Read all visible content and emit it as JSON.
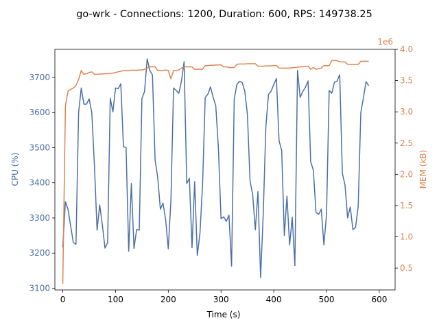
{
  "chart_data": {
    "type": "line",
    "title": "go-wrk - Connections: 1200, Duration: 600, RPS: 149738.25",
    "xlabel": "Time (s)",
    "ylabel_left": "CPU (%)",
    "ylabel_right": "MEM (kB)",
    "right_offset_label": "1e6",
    "xlim": [
      -15,
      630
    ],
    "ylim_left": [
      3095,
      3780
    ],
    "ylim_right": [
      0.15,
      4.0
    ],
    "x_ticks": [
      0,
      100,
      200,
      300,
      400,
      500,
      600
    ],
    "x_tick_labels": [
      "0",
      "100",
      "200",
      "300",
      "400",
      "500",
      "600"
    ],
    "y_left_ticks": [
      3100,
      3200,
      3300,
      3400,
      3500,
      3600,
      3700
    ],
    "y_left_tick_labels": [
      "3100",
      "3200",
      "3300",
      "3400",
      "3500",
      "3600",
      "3700"
    ],
    "y_right_ticks": [
      0.5,
      1.0,
      1.5,
      2.0,
      2.5,
      3.0,
      3.5,
      4.0
    ],
    "y_right_tick_labels": [
      "0.5",
      "1.0",
      "1.5",
      "2.0",
      "2.5",
      "3.0",
      "3.5",
      "4.0"
    ],
    "grid": false,
    "colors": {
      "cpu": "#4c6fa8",
      "mem": "#dd8452",
      "axis": "#000000"
    },
    "series": [
      {
        "key": "cpu",
        "axis": "left",
        "points": [
          [
            0,
            3216
          ],
          [
            5,
            3346
          ],
          [
            10,
            3324
          ],
          [
            15,
            3276
          ],
          [
            20,
            3230
          ],
          [
            25,
            3225
          ],
          [
            30,
            3600
          ],
          [
            35,
            3670
          ],
          [
            40,
            3624
          ],
          [
            45,
            3624
          ],
          [
            50,
            3639
          ],
          [
            55,
            3600
          ],
          [
            60,
            3450
          ],
          [
            65,
            3265
          ],
          [
            70,
            3337
          ],
          [
            75,
            3280
          ],
          [
            80,
            3214
          ],
          [
            85,
            3230
          ],
          [
            90,
            3641
          ],
          [
            95,
            3602
          ],
          [
            100,
            3670
          ],
          [
            105,
            3668
          ],
          [
            110,
            3682
          ],
          [
            115,
            3503
          ],
          [
            120,
            3500
          ],
          [
            125,
            3205
          ],
          [
            130,
            3398
          ],
          [
            135,
            3213
          ],
          [
            140,
            3267
          ],
          [
            145,
            3265
          ],
          [
            150,
            3640
          ],
          [
            155,
            3660
          ],
          [
            160,
            3753
          ],
          [
            165,
            3720
          ],
          [
            170,
            3707
          ],
          [
            175,
            3465
          ],
          [
            180,
            3415
          ],
          [
            185,
            3325
          ],
          [
            190,
            3342
          ],
          [
            195,
            3295
          ],
          [
            200,
            3212
          ],
          [
            205,
            3350
          ],
          [
            210,
            3670
          ],
          [
            215,
            3663
          ],
          [
            220,
            3655
          ],
          [
            225,
            3690
          ],
          [
            230,
            3745
          ],
          [
            235,
            3398
          ],
          [
            240,
            3413
          ],
          [
            245,
            3215
          ],
          [
            250,
            3403
          ],
          [
            255,
            3193
          ],
          [
            260,
            3255
          ],
          [
            265,
            3395
          ],
          [
            270,
            3643
          ],
          [
            275,
            3652
          ],
          [
            280,
            3673
          ],
          [
            285,
            3644
          ],
          [
            290,
            3620
          ],
          [
            295,
            3500
          ],
          [
            300,
            3298
          ],
          [
            305,
            3303
          ],
          [
            310,
            3290
          ],
          [
            315,
            3308
          ],
          [
            320,
            3163
          ],
          [
            325,
            3638
          ],
          [
            330,
            3680
          ],
          [
            335,
            3689
          ],
          [
            340,
            3686
          ],
          [
            345,
            3661
          ],
          [
            350,
            3595
          ],
          [
            355,
            3405
          ],
          [
            360,
            3367
          ],
          [
            365,
            3266
          ],
          [
            370,
            3375
          ],
          [
            375,
            3130
          ],
          [
            380,
            3310
          ],
          [
            385,
            3560
          ],
          [
            390,
            3652
          ],
          [
            395,
            3661
          ],
          [
            400,
            3680
          ],
          [
            405,
            3697
          ],
          [
            410,
            3520
          ],
          [
            415,
            3492
          ],
          [
            420,
            3250
          ],
          [
            425,
            3362
          ],
          [
            430,
            3223
          ],
          [
            435,
            3302
          ],
          [
            440,
            3164
          ],
          [
            445,
            3720
          ],
          [
            450,
            3643
          ],
          [
            455,
            3660
          ],
          [
            460,
            3672
          ],
          [
            465,
            3690
          ],
          [
            470,
            3460
          ],
          [
            475,
            3436
          ],
          [
            480,
            3316
          ],
          [
            485,
            3310
          ],
          [
            490,
            3325
          ],
          [
            495,
            3223
          ],
          [
            500,
            3310
          ],
          [
            505,
            3663
          ],
          [
            510,
            3655
          ],
          [
            515,
            3686
          ],
          [
            520,
            3690
          ],
          [
            525,
            3708
          ],
          [
            530,
            3427
          ],
          [
            535,
            3394
          ],
          [
            540,
            3300
          ],
          [
            545,
            3331
          ],
          [
            550,
            3267
          ],
          [
            555,
            3273
          ],
          [
            560,
            3332
          ],
          [
            565,
            3600
          ],
          [
            570,
            3643
          ],
          [
            575,
            3688
          ],
          [
            580,
            3676
          ]
        ]
      },
      {
        "key": "mem",
        "axis": "right",
        "points": [
          [
            0,
            0.25
          ],
          [
            5,
            3.1
          ],
          [
            10,
            3.33
          ],
          [
            15,
            3.36
          ],
          [
            20,
            3.38
          ],
          [
            25,
            3.42
          ],
          [
            30,
            3.52
          ],
          [
            35,
            3.66
          ],
          [
            40,
            3.6
          ],
          [
            45,
            3.61
          ],
          [
            50,
            3.63
          ],
          [
            55,
            3.64
          ],
          [
            60,
            3.6
          ],
          [
            65,
            3.6
          ],
          [
            70,
            3.605
          ],
          [
            75,
            3.605
          ],
          [
            80,
            3.61
          ],
          [
            85,
            3.61
          ],
          [
            90,
            3.615
          ],
          [
            95,
            3.62
          ],
          [
            100,
            3.63
          ],
          [
            105,
            3.64
          ],
          [
            110,
            3.65
          ],
          [
            115,
            3.66
          ],
          [
            120,
            3.66
          ],
          [
            125,
            3.66
          ],
          [
            130,
            3.665
          ],
          [
            135,
            3.665
          ],
          [
            140,
            3.665
          ],
          [
            145,
            3.67
          ],
          [
            150,
            3.67
          ],
          [
            155,
            3.68
          ],
          [
            160,
            3.7
          ],
          [
            165,
            3.72
          ],
          [
            170,
            3.72
          ],
          [
            175,
            3.72
          ],
          [
            180,
            3.66
          ],
          [
            185,
            3.66
          ],
          [
            190,
            3.66
          ],
          [
            195,
            3.67
          ],
          [
            200,
            3.66
          ],
          [
            205,
            3.53
          ],
          [
            210,
            3.66
          ],
          [
            215,
            3.66
          ],
          [
            220,
            3.67
          ],
          [
            225,
            3.7
          ],
          [
            230,
            3.72
          ],
          [
            235,
            3.72
          ],
          [
            240,
            3.72
          ],
          [
            245,
            3.72
          ],
          [
            250,
            3.68
          ],
          [
            255,
            3.68
          ],
          [
            260,
            3.68
          ],
          [
            265,
            3.68
          ],
          [
            270,
            3.74
          ],
          [
            275,
            3.74
          ],
          [
            280,
            3.745
          ],
          [
            285,
            3.745
          ],
          [
            290,
            3.75
          ],
          [
            295,
            3.75
          ],
          [
            300,
            3.75
          ],
          [
            305,
            3.72
          ],
          [
            310,
            3.72
          ],
          [
            315,
            3.71
          ],
          [
            320,
            3.71
          ],
          [
            325,
            3.71
          ],
          [
            330,
            3.76
          ],
          [
            335,
            3.765
          ],
          [
            340,
            3.765
          ],
          [
            345,
            3.765
          ],
          [
            350,
            3.77
          ],
          [
            355,
            3.77
          ],
          [
            360,
            3.77
          ],
          [
            365,
            3.77
          ],
          [
            370,
            3.73
          ],
          [
            375,
            3.73
          ],
          [
            380,
            3.73
          ],
          [
            385,
            3.735
          ],
          [
            390,
            3.735
          ],
          [
            395,
            3.735
          ],
          [
            400,
            3.74
          ],
          [
            405,
            3.74
          ],
          [
            410,
            3.7
          ],
          [
            415,
            3.7
          ],
          [
            420,
            3.7
          ],
          [
            425,
            3.7
          ],
          [
            430,
            3.7
          ],
          [
            435,
            3.705
          ],
          [
            440,
            3.71
          ],
          [
            445,
            3.715
          ],
          [
            450,
            3.72
          ],
          [
            455,
            3.72
          ],
          [
            460,
            3.73
          ],
          [
            465,
            3.73
          ],
          [
            470,
            3.68
          ],
          [
            475,
            3.71
          ],
          [
            480,
            3.68
          ],
          [
            485,
            3.69
          ],
          [
            490,
            3.7
          ],
          [
            495,
            3.74
          ],
          [
            500,
            3.74
          ],
          [
            505,
            3.74
          ],
          [
            510,
            3.82
          ],
          [
            515,
            3.82
          ],
          [
            520,
            3.82
          ],
          [
            525,
            3.8
          ],
          [
            530,
            3.8
          ],
          [
            535,
            3.8
          ],
          [
            540,
            3.76
          ],
          [
            545,
            3.76
          ],
          [
            550,
            3.76
          ],
          [
            555,
            3.76
          ],
          [
            560,
            3.76
          ],
          [
            565,
            3.81
          ],
          [
            570,
            3.81
          ],
          [
            575,
            3.81
          ],
          [
            580,
            3.81
          ]
        ]
      }
    ]
  }
}
